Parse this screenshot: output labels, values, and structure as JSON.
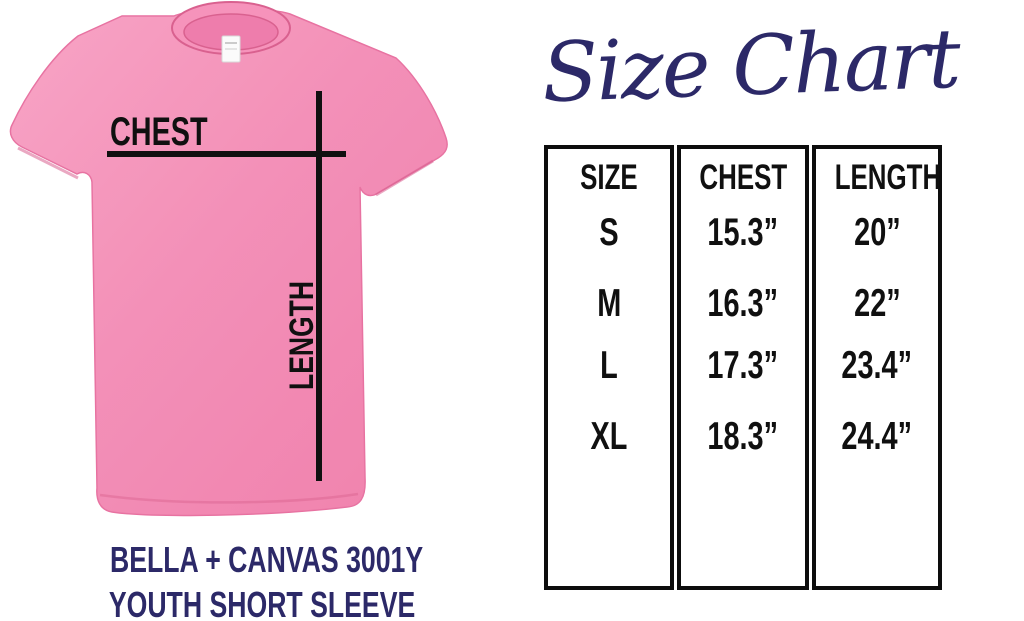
{
  "title": "Size Chart",
  "colors": {
    "navy": "#2c2968",
    "shirt_pink": "#f184b0",
    "line_black": "#101010"
  },
  "shirt_diagram": {
    "chest_label": "CHEST",
    "length_label": "LENGTH"
  },
  "caption": {
    "line1": "BELLA + CANVAS 3001Y",
    "line2": "YOUTH SHORT SLEEVE"
  },
  "chart_data": {
    "type": "table",
    "title": "Size Chart",
    "columns": [
      "SIZE",
      "CHEST",
      "LENGTH"
    ],
    "rows": [
      [
        "S",
        "15.3”",
        "20”"
      ],
      [
        "M",
        "16.3”",
        "22”"
      ],
      [
        "L",
        "17.3”",
        "23.4”"
      ],
      [
        "XL",
        "18.3”",
        "24.4”"
      ]
    ]
  }
}
